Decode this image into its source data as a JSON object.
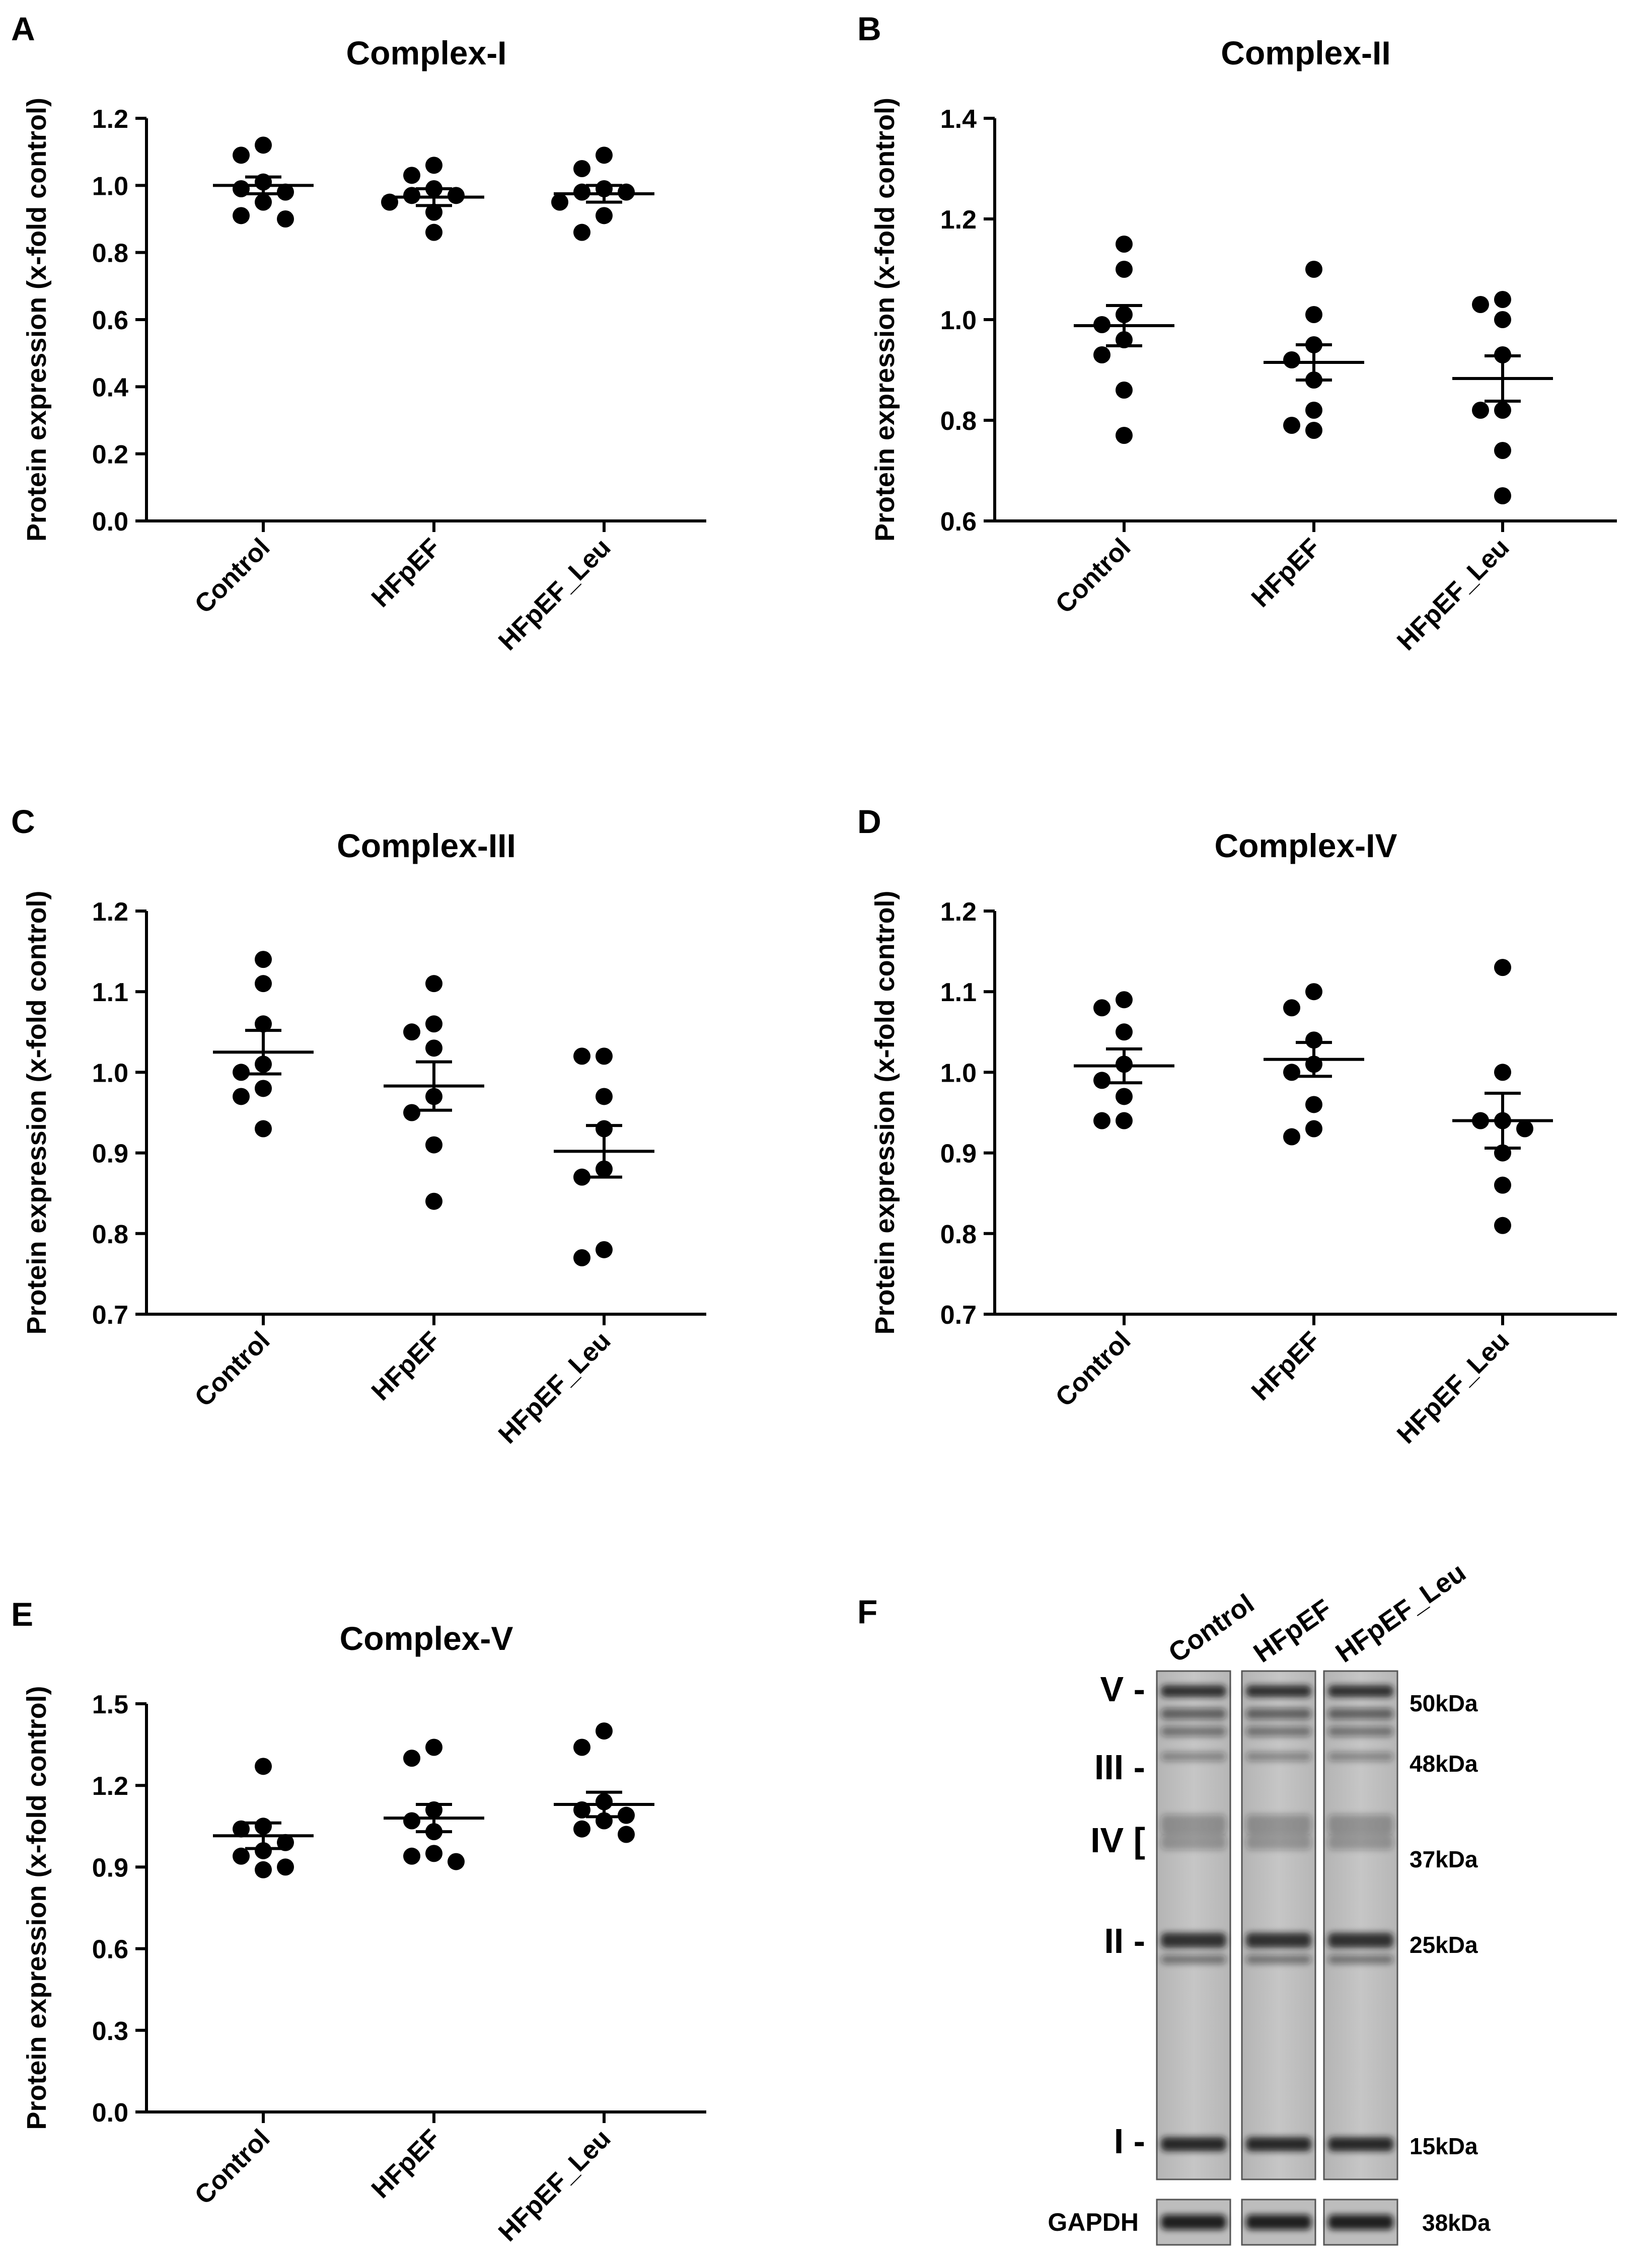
{
  "figure": {
    "y_axis_label": "Protein expression (x-fold control)",
    "group_labels": [
      "Control",
      "HFpEF",
      "HFpEF_Leu"
    ]
  },
  "chart_data": [
    {
      "panel": "A",
      "type": "scatter",
      "title": "Complex-I",
      "ylabel": "Protein expression (x-fold control)",
      "categories": [
        "Control",
        "HFpEF",
        "HFpEF_Leu"
      ],
      "ylim": [
        0.0,
        1.2
      ],
      "yticks": [
        "0.0",
        "0.2",
        "0.4",
        "0.6",
        "0.8",
        "1.0",
        "1.2"
      ],
      "series": [
        {
          "name": "Control",
          "points": [
            1.12,
            1.09,
            1.01,
            0.99,
            0.98,
            0.95,
            0.91,
            0.9
          ],
          "mean": 1.0,
          "sem_low": 0.975,
          "sem_high": 1.025
        },
        {
          "name": "HFpEF",
          "points": [
            1.06,
            1.03,
            0.99,
            0.97,
            0.97,
            0.95,
            0.92,
            0.86
          ],
          "mean": 0.965,
          "sem_low": 0.94,
          "sem_high": 0.99
        },
        {
          "name": "HFpEF_Leu",
          "points": [
            1.09,
            1.05,
            0.99,
            0.98,
            0.98,
            0.95,
            0.91,
            0.86
          ],
          "mean": 0.975,
          "sem_low": 0.95,
          "sem_high": 1.0
        }
      ]
    },
    {
      "panel": "B",
      "type": "scatter",
      "title": "Complex-II",
      "ylabel": "Protein expression (x-fold control)",
      "categories": [
        "Control",
        "HFpEF",
        "HFpEF_Leu"
      ],
      "ylim": [
        0.6,
        1.4
      ],
      "yticks": [
        "0.6",
        "0.8",
        "1.0",
        "1.2",
        "1.4"
      ],
      "series": [
        {
          "name": "Control",
          "points": [
            1.15,
            1.1,
            1.01,
            0.99,
            0.96,
            0.93,
            0.86,
            0.77
          ],
          "mean": 0.988,
          "sem_low": 0.948,
          "sem_high": 1.028
        },
        {
          "name": "HFpEF",
          "points": [
            1.1,
            1.01,
            0.95,
            0.92,
            0.88,
            0.82,
            0.79,
            0.78
          ],
          "mean": 0.915,
          "sem_low": 0.88,
          "sem_high": 0.95
        },
        {
          "name": "HFpEF_Leu",
          "points": [
            1.04,
            1.03,
            1.0,
            0.93,
            0.82,
            0.82,
            0.74,
            0.65
          ],
          "mean": 0.883,
          "sem_low": 0.838,
          "sem_high": 0.928
        }
      ]
    },
    {
      "panel": "C",
      "type": "scatter",
      "title": "Complex-III",
      "ylabel": "Protein expression (x-fold control)",
      "categories": [
        "Control",
        "HFpEF",
        "HFpEF_Leu"
      ],
      "ylim": [
        0.7,
        1.2
      ],
      "yticks": [
        "0.7",
        "0.8",
        "0.9",
        "1.0",
        "1.1",
        "1.2"
      ],
      "series": [
        {
          "name": "Control",
          "points": [
            1.14,
            1.11,
            1.06,
            1.01,
            1.0,
            0.98,
            0.97,
            0.93
          ],
          "mean": 1.025,
          "sem_low": 0.998,
          "sem_high": 1.052
        },
        {
          "name": "HFpEF",
          "points": [
            1.11,
            1.06,
            1.05,
            1.03,
            0.97,
            0.95,
            0.91,
            0.84
          ],
          "mean": 0.983,
          "sem_low": 0.953,
          "sem_high": 1.013
        },
        {
          "name": "HFpEF_Leu",
          "points": [
            1.02,
            1.02,
            0.97,
            0.93,
            0.88,
            0.87,
            0.78,
            0.77
          ],
          "mean": 0.902,
          "sem_low": 0.87,
          "sem_high": 0.934
        }
      ]
    },
    {
      "panel": "D",
      "type": "scatter",
      "title": "Complex-IV",
      "ylabel": "Protein expression (x-fold control)",
      "categories": [
        "Control",
        "HFpEF",
        "HFpEF_Leu"
      ],
      "ylim": [
        0.7,
        1.2
      ],
      "yticks": [
        "0.7",
        "0.8",
        "0.9",
        "1.0",
        "1.1",
        "1.2"
      ],
      "series": [
        {
          "name": "Control",
          "points": [
            1.09,
            1.08,
            1.05,
            1.01,
            0.99,
            0.97,
            0.94,
            0.94
          ],
          "mean": 1.008,
          "sem_low": 0.987,
          "sem_high": 1.029
        },
        {
          "name": "HFpEF",
          "points": [
            1.1,
            1.08,
            1.04,
            1.01,
            1.0,
            0.96,
            0.93,
            0.92
          ],
          "mean": 1.016,
          "sem_low": 0.995,
          "sem_high": 1.037
        },
        {
          "name": "HFpEF_Leu",
          "points": [
            1.13,
            1.0,
            0.94,
            0.94,
            0.93,
            0.9,
            0.86,
            0.81
          ],
          "mean": 0.94,
          "sem_low": 0.906,
          "sem_high": 0.974
        }
      ]
    },
    {
      "panel": "E",
      "type": "scatter",
      "title": "Complex-V",
      "ylabel": "Protein expression (x-fold control)",
      "categories": [
        "Control",
        "HFpEF",
        "HFpEF_Leu"
      ],
      "ylim": [
        0.0,
        1.5
      ],
      "yticks": [
        "0.0",
        "0.3",
        "0.6",
        "0.9",
        "1.2",
        "1.5"
      ],
      "series": [
        {
          "name": "Control",
          "points": [
            1.27,
            1.05,
            1.04,
            0.99,
            0.96,
            0.94,
            0.9,
            0.89
          ],
          "mean": 1.015,
          "sem_low": 0.968,
          "sem_high": 1.062
        },
        {
          "name": "HFpEF",
          "points": [
            1.34,
            1.3,
            1.11,
            1.07,
            1.03,
            0.95,
            0.94,
            0.92
          ],
          "mean": 1.08,
          "sem_low": 1.03,
          "sem_high": 1.13
        },
        {
          "name": "HFpEF_Leu",
          "points": [
            1.4,
            1.34,
            1.14,
            1.11,
            1.09,
            1.07,
            1.04,
            1.02
          ],
          "mean": 1.13,
          "sem_low": 1.085,
          "sem_high": 1.175
        }
      ]
    }
  ],
  "blot": {
    "panel": "F",
    "lanes": [
      "Control",
      "HFpEF",
      "HFpEF_Leu"
    ],
    "complex_labels": [
      "V -",
      "III -",
      "IV [",
      "II -",
      "I -"
    ],
    "kda_labels": [
      "50kDa",
      "48kDa",
      "37kDa",
      "25kDa",
      "15kDa"
    ],
    "gapdh_label": "GAPDH",
    "gapdh_kda": "38kDa"
  }
}
